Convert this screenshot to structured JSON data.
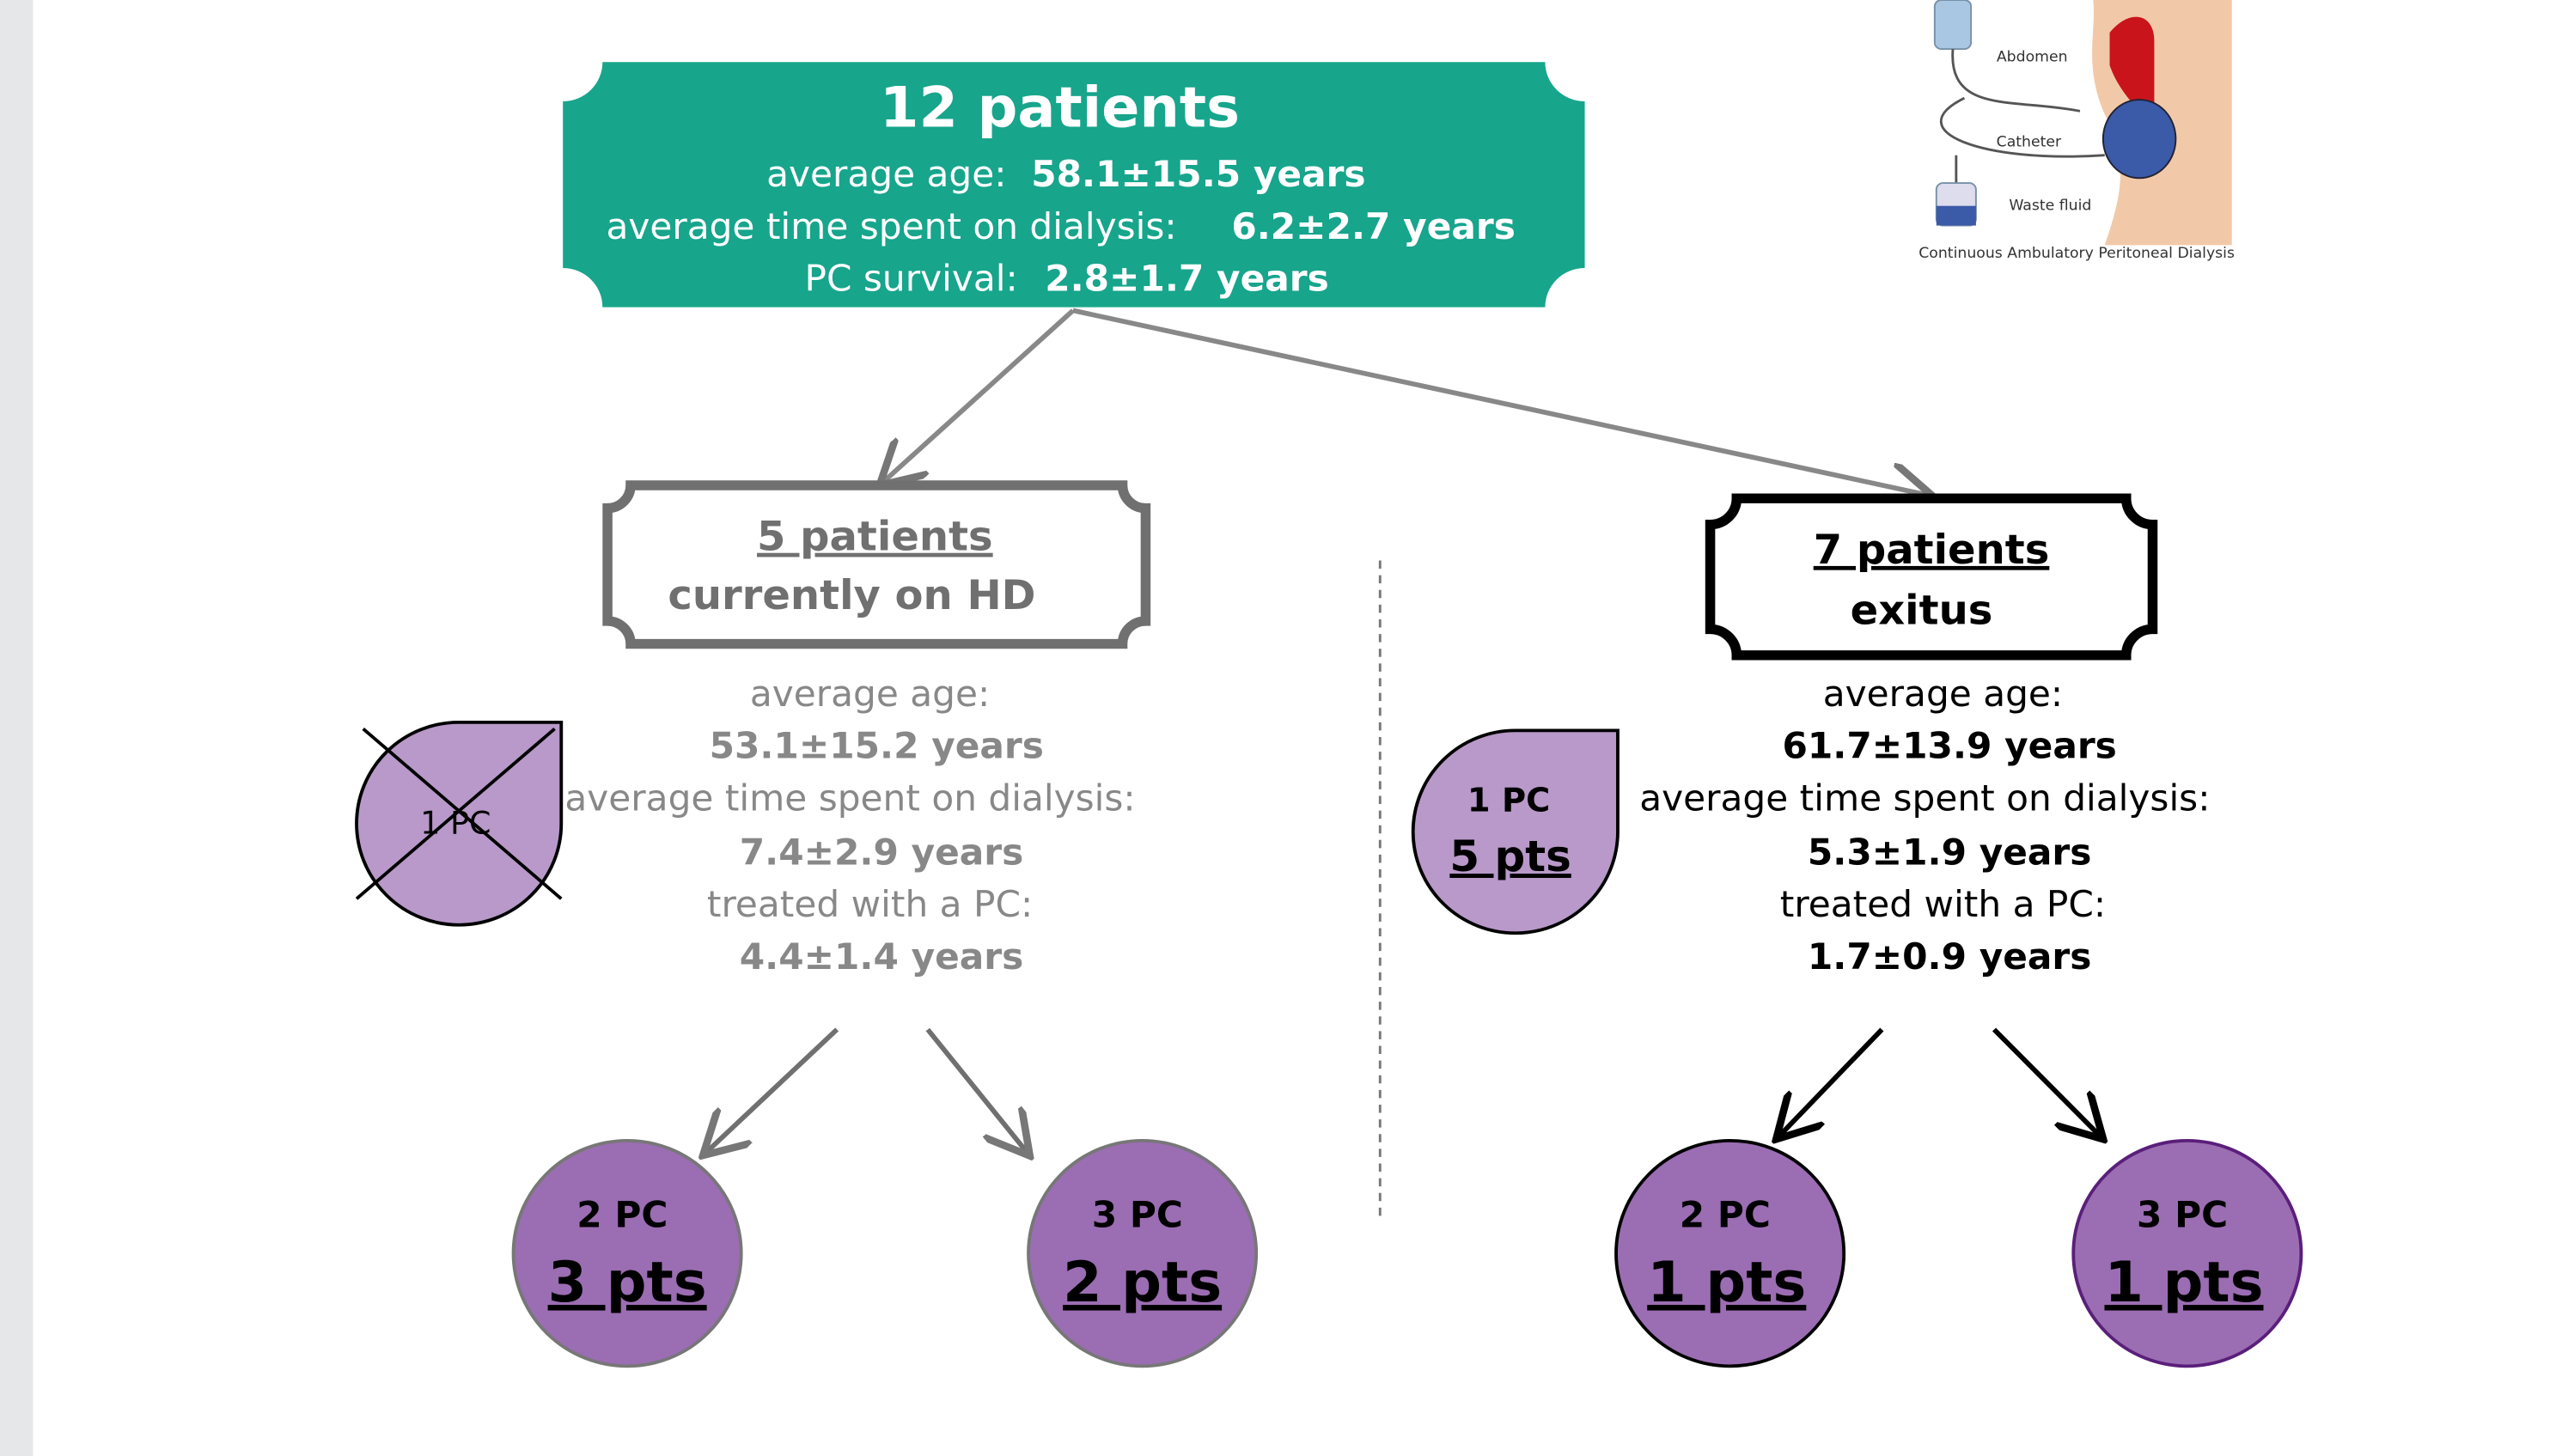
{
  "top": {
    "title": "12 patients",
    "age_label": "average age:",
    "age": "58.1±15.5 years",
    "dialysis_label": "average time spent on dialysis:",
    "dialysis": "6.2±2.7 years",
    "survival_label": "PC survival:",
    "survival": "2.8±1.7 years"
  },
  "left": {
    "title": "5 patients",
    "subtitle": "currently on HD",
    "age_label": "average age:",
    "age": "53.1±15.2 years",
    "dialysis_label": "average time spent on dialysis:",
    "dialysis": "7.4±2.9 years",
    "pc_label": "treated with a PC:",
    "pc": "4.4±1.4 years",
    "drop": "1 PC",
    "circles": [
      {
        "pc": "2 PC",
        "pts": "3 pts"
      },
      {
        "pc": "3 PC",
        "pts": "2 pts"
      }
    ]
  },
  "right": {
    "title": "7 patients",
    "subtitle": "exitus",
    "age_label": "average age:",
    "age": "61.7±13.9 years",
    "dialysis_label": "average time spent on dialysis:",
    "dialysis": "5.3±1.9 years",
    "pc_label": "treated with a PC:",
    "pc": "1.7±0.9 years",
    "drop_pc": "1 PC",
    "drop_pts": "5 pts",
    "circles": [
      {
        "pc": "2 PC",
        "pts": "1 pts"
      },
      {
        "pc": "3 PC",
        "pts": "1 pts"
      }
    ]
  },
  "illustration": {
    "abdomen": "Abdomen",
    "catheter": "Catheter",
    "waste": "Waste fluid",
    "caption": "Continuous Ambulatory Peritoneal Dialysis"
  }
}
